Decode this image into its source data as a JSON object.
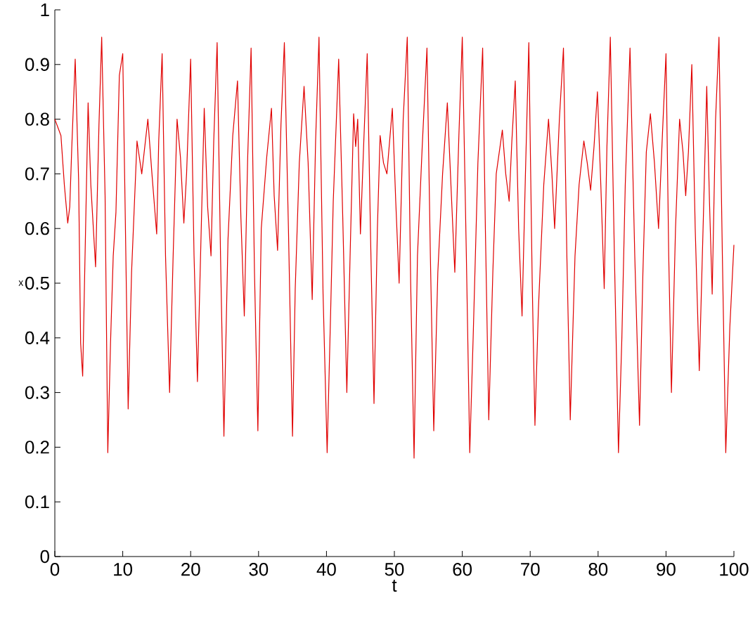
{
  "chart_data": {
    "type": "line",
    "xlabel": "t",
    "ylabel": "x",
    "x": [
      0.0,
      0.9,
      1.4,
      1.9,
      2.2,
      2.5,
      3.0,
      3.5,
      3.8,
      4.1,
      4.4,
      4.9,
      5.3,
      6.0,
      6.5,
      6.9,
      7.4,
      7.8,
      8.2,
      8.6,
      9.0,
      9.5,
      10.0,
      10.3,
      10.8,
      11.3,
      12.1,
      12.8,
      13.7,
      14.3,
      15.0,
      15.3,
      15.8,
      16.3,
      16.9,
      17.4,
      18.0,
      18.5,
      19.0,
      19.4,
      20.0,
      20.5,
      21.0,
      21.5,
      22.0,
      22.5,
      23.0,
      23.4,
      23.9,
      24.4,
      24.9,
      25.5,
      26.2,
      26.9,
      27.4,
      27.9,
      28.4,
      28.9,
      29.4,
      29.9,
      30.4,
      31.2,
      31.9,
      32.3,
      32.8,
      33.3,
      33.8,
      34.4,
      35.0,
      35.4,
      36.0,
      36.7,
      37.3,
      37.9,
      38.4,
      38.9,
      39.5,
      40.1,
      40.6,
      41.0,
      41.8,
      42.4,
      43.0,
      43.5,
      44.0,
      44.3,
      44.6,
      45.0,
      45.5,
      46.0,
      46.5,
      47.0,
      47.5,
      47.9,
      48.4,
      48.9,
      49.7,
      50.2,
      50.7,
      51.3,
      51.9,
      52.4,
      52.9,
      53.4,
      54.1,
      54.8,
      55.3,
      55.8,
      56.4,
      57.1,
      57.8,
      58.4,
      58.9,
      59.5,
      60.0,
      60.6,
      61.1,
      61.6,
      62.3,
      63.0,
      63.4,
      63.9,
      64.5,
      65.0,
      65.9,
      66.4,
      66.9,
      67.3,
      67.8,
      68.3,
      68.8,
      69.3,
      69.8,
      70.3,
      70.7,
      71.2,
      72.0,
      72.7,
      73.2,
      73.6,
      74.3,
      74.9,
      75.4,
      75.9,
      76.6,
      77.2,
      77.9,
      78.4,
      78.9,
      79.4,
      79.9,
      80.4,
      80.9,
      81.3,
      81.8,
      82.4,
      83.0,
      83.5,
      84.0,
      84.7,
      85.4,
      86.1,
      86.6,
      87.1,
      87.7,
      88.3,
      88.9,
      89.5,
      90.0,
      90.4,
      90.8,
      91.4,
      92.0,
      92.5,
      92.9,
      93.3,
      93.8,
      94.3,
      94.9,
      95.5,
      96.0,
      96.4,
      96.8,
      97.3,
      97.8,
      98.3,
      98.8,
      99.4,
      100.0
    ],
    "values": [
      0.8,
      0.77,
      0.68,
      0.61,
      0.64,
      0.75,
      0.91,
      0.69,
      0.39,
      0.33,
      0.52,
      0.83,
      0.68,
      0.53,
      0.79,
      0.95,
      0.66,
      0.19,
      0.39,
      0.55,
      0.63,
      0.88,
      0.92,
      0.68,
      0.27,
      0.52,
      0.76,
      0.7,
      0.8,
      0.7,
      0.59,
      0.76,
      0.92,
      0.55,
      0.3,
      0.54,
      0.8,
      0.73,
      0.61,
      0.7,
      0.91,
      0.55,
      0.32,
      0.57,
      0.82,
      0.64,
      0.55,
      0.76,
      0.94,
      0.55,
      0.22,
      0.58,
      0.77,
      0.87,
      0.62,
      0.44,
      0.73,
      0.93,
      0.52,
      0.23,
      0.6,
      0.73,
      0.82,
      0.66,
      0.56,
      0.79,
      0.94,
      0.6,
      0.22,
      0.49,
      0.72,
      0.86,
      0.72,
      0.47,
      0.76,
      0.95,
      0.48,
      0.19,
      0.44,
      0.65,
      0.91,
      0.62,
      0.3,
      0.56,
      0.81,
      0.75,
      0.8,
      0.59,
      0.76,
      0.92,
      0.58,
      0.28,
      0.6,
      0.77,
      0.72,
      0.7,
      0.82,
      0.65,
      0.5,
      0.8,
      0.95,
      0.5,
      0.18,
      0.55,
      0.75,
      0.93,
      0.55,
      0.23,
      0.52,
      0.7,
      0.83,
      0.66,
      0.52,
      0.77,
      0.95,
      0.55,
      0.19,
      0.4,
      0.72,
      0.93,
      0.6,
      0.25,
      0.52,
      0.7,
      0.78,
      0.7,
      0.65,
      0.76,
      0.87,
      0.6,
      0.44,
      0.7,
      0.94,
      0.5,
      0.24,
      0.45,
      0.68,
      0.8,
      0.7,
      0.6,
      0.8,
      0.93,
      0.55,
      0.25,
      0.55,
      0.68,
      0.76,
      0.72,
      0.67,
      0.75,
      0.85,
      0.68,
      0.49,
      0.75,
      0.95,
      0.55,
      0.19,
      0.4,
      0.68,
      0.93,
      0.55,
      0.24,
      0.52,
      0.74,
      0.81,
      0.72,
      0.6,
      0.78,
      0.92,
      0.55,
      0.3,
      0.6,
      0.8,
      0.74,
      0.66,
      0.74,
      0.9,
      0.6,
      0.34,
      0.62,
      0.86,
      0.65,
      0.48,
      0.8,
      0.95,
      0.55,
      0.19,
      0.42,
      0.57
    ],
    "color": "#e00000",
    "marker": "none",
    "line_style": "solid",
    "xlim": [
      0,
      100
    ],
    "ylim": [
      0,
      1
    ],
    "xticks": [
      0,
      10,
      20,
      30,
      40,
      50,
      60,
      70,
      80,
      90,
      100
    ],
    "yticks": [
      0,
      0.1,
      0.2,
      0.3,
      0.4,
      0.5,
      0.6,
      0.7,
      0.8,
      0.9,
      1
    ]
  }
}
